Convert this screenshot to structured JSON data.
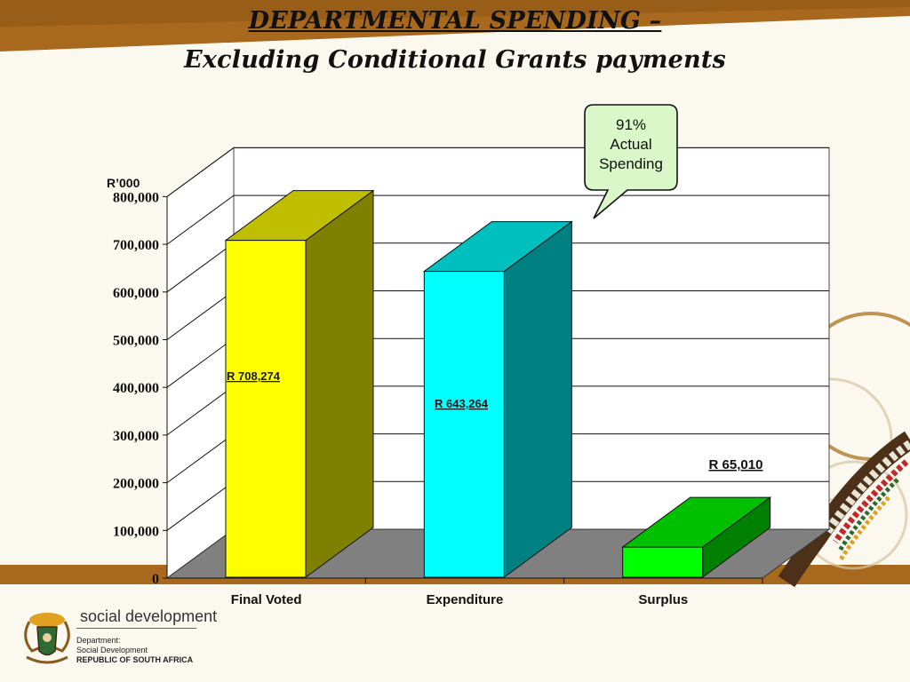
{
  "title": {
    "line1": "DEPARTMENTAL SPENDING –",
    "line2": "Excluding Conditional Grants payments"
  },
  "callout": {
    "lines": [
      "91%",
      "Actual",
      "Spending"
    ]
  },
  "footer": {
    "brand": "social development",
    "dept_line1": "Department:",
    "dept_line2": "Social Development",
    "dept_line3": "REPUBLIC OF SOUTH AFRICA"
  },
  "colors": {
    "band": "#a8691e",
    "floor": "#808080",
    "final_voted_front": "#ffff00",
    "expenditure_front": "#00ffff",
    "surplus_front": "#00ff00"
  },
  "chart_data": {
    "type": "bar",
    "three_d": true,
    "unit_label": "R’000",
    "categories": [
      "Final Voted",
      "Expenditure",
      "Surplus"
    ],
    "values": [
      708274,
      643264,
      65010
    ],
    "data_labels": [
      "R 708,274",
      "R 643,264",
      "R 65,010"
    ],
    "ylim": [
      0,
      800000
    ],
    "yticks": [
      {
        "value": 0,
        "label": "0"
      },
      {
        "value": 100000,
        "label": "100,000"
      },
      {
        "value": 200000,
        "label": "200,000"
      },
      {
        "value": 300000,
        "label": "300,000"
      },
      {
        "value": 400000,
        "label": "400,000"
      },
      {
        "value": 500000,
        "label": "500,000"
      },
      {
        "value": 600000,
        "label": "600,000"
      },
      {
        "value": 700000,
        "label": "700,000"
      },
      {
        "value": 800000,
        "label": "800,000"
      }
    ],
    "grid": true,
    "legend": "none"
  }
}
